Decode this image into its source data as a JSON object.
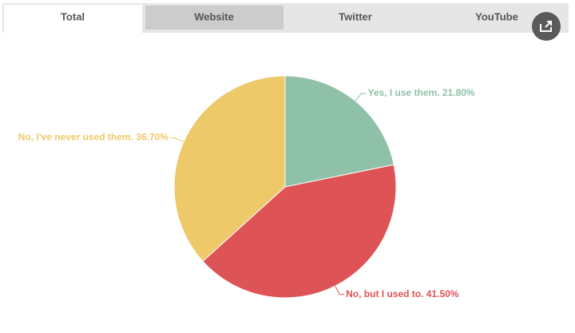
{
  "tabs": [
    "Total",
    "Website",
    "Twitter",
    "YouTube"
  ],
  "chart_data": {
    "type": "pie",
    "categories": [
      "Yes, I use them.",
      "No, but I used to.",
      "No, I've never used them."
    ],
    "values": [
      21.8,
      41.5,
      36.7
    ],
    "value_labels": [
      "21.80%",
      "41.50%",
      "36.70%"
    ],
    "colors": [
      "#8fc1a9",
      "#de5356",
      "#eec96a"
    ]
  }
}
